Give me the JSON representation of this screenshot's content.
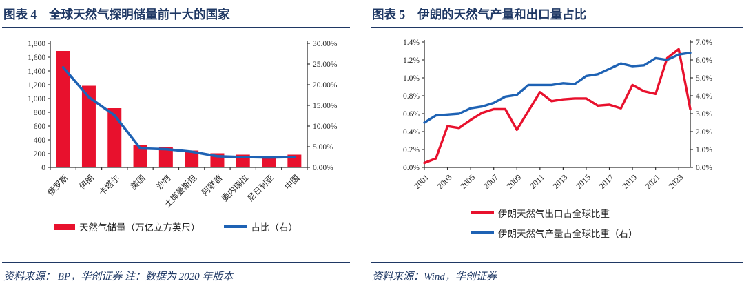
{
  "figures": [
    {
      "label": "图表 4",
      "title": "全球天然气探明储量前十大的国家",
      "source": "资料来源：  BP，华创证券  注：数据为 2020 年版本"
    },
    {
      "label": "图表 5",
      "title": "伊朗的天然气产量和出口量占比",
      "source": "资料来源：Wind，华创证券"
    }
  ],
  "colors": {
    "navy": "#1f3864",
    "red": "#e8112d",
    "blue": "#1e62b4",
    "axis_line": "#333333",
    "axis_text": "#262626"
  },
  "chart_data": [
    {
      "type": "bar",
      "title": "全球天然气探明储量前十大的国家",
      "categories": [
        "俄罗斯",
        "伊朗",
        "卡塔尔",
        "美国",
        "沙特",
        "土库曼斯坦",
        "阿联酋",
        "委内瑞拉",
        "尼日利亚",
        "中国"
      ],
      "series": [
        {
          "name": "天然气储量（万亿立方英尺）",
          "kind": "bar",
          "axis": "left",
          "color": "#e8112d",
          "values": [
            1690,
            1185,
            860,
            325,
            300,
            245,
            205,
            185,
            170,
            185
          ]
        },
        {
          "name": "占比（右）",
          "kind": "line",
          "axis": "right",
          "color": "#1e62b4",
          "values": [
            24.2,
            17.0,
            12.6,
            4.6,
            4.4,
            3.8,
            2.7,
            2.5,
            2.4,
            2.5
          ]
        }
      ],
      "left_axis": {
        "min": 0,
        "max": 1800,
        "tick_labels": [
          "0",
          "200",
          "400",
          "600",
          "800",
          "1,000",
          "1,200",
          "1,400",
          "1,600",
          "1,800"
        ]
      },
      "right_axis": {
        "min": 0,
        "max": 30,
        "tick_labels": [
          "0.00%",
          "5.00%",
          "10.00%",
          "15.00%",
          "20.00%",
          "25.00%",
          "30.00%"
        ]
      },
      "legend_position": "bottom-center",
      "grid": false
    },
    {
      "type": "line",
      "title": "伊朗的天然气产量和出口量占比",
      "x": [
        2001,
        2002,
        2003,
        2004,
        2005,
        2006,
        2007,
        2008,
        2009,
        2010,
        2011,
        2012,
        2013,
        2014,
        2015,
        2016,
        2017,
        2018,
        2019,
        2020,
        2021,
        2022,
        2023,
        2024
      ],
      "x_tick_labels": [
        "2001",
        "2003",
        "2005",
        "2007",
        "2009",
        "2011",
        "2013",
        "2015",
        "2017",
        "2019",
        "2021",
        "2023"
      ],
      "series": [
        {
          "name": "伊朗天然气出口占全球比重",
          "axis": "left",
          "color": "#e8112d",
          "values": [
            0.05,
            0.1,
            0.46,
            0.44,
            0.53,
            0.61,
            0.65,
            0.65,
            0.42,
            0.63,
            0.84,
            0.74,
            0.76,
            0.77,
            0.77,
            0.69,
            0.7,
            0.66,
            0.92,
            0.85,
            0.82,
            1.22,
            1.32,
            0.65
          ]
        },
        {
          "name": "伊朗天然气产量占全球比重（右）",
          "axis": "right",
          "color": "#1e62b4",
          "values": [
            2.5,
            2.9,
            2.95,
            3.0,
            3.3,
            3.4,
            3.6,
            3.95,
            4.05,
            4.6,
            4.6,
            4.6,
            4.7,
            4.65,
            5.1,
            5.2,
            5.5,
            5.8,
            5.65,
            5.7,
            6.1,
            6.0,
            6.3,
            6.4
          ]
        }
      ],
      "left_axis": {
        "min": 0,
        "max": 1.4,
        "tick_labels": [
          "0.0%",
          "0.2%",
          "0.4%",
          "0.6%",
          "0.8%",
          "1.0%",
          "1.2%",
          "1.4%"
        ]
      },
      "right_axis": {
        "min": 0,
        "max": 7,
        "tick_labels": [
          "0.0%",
          "1.0%",
          "2.0%",
          "3.0%",
          "4.0%",
          "5.0%",
          "6.0%",
          "7.0%"
        ]
      },
      "legend_position": "bottom-left",
      "grid": false
    }
  ]
}
